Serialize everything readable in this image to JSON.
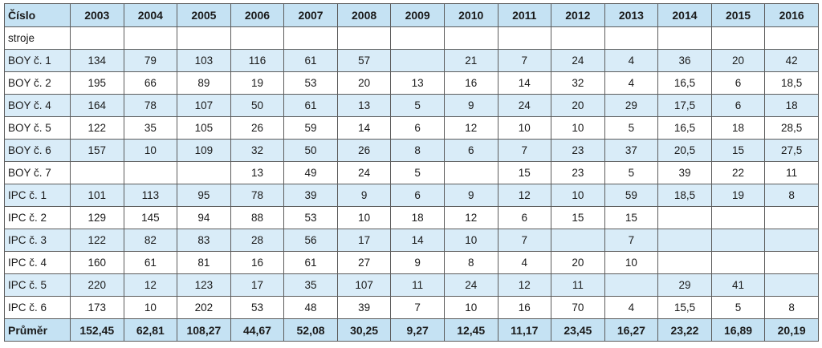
{
  "table": {
    "header": [
      "Číslo",
      "2003",
      "2004",
      "2005",
      "2006",
      "2007",
      "2008",
      "2009",
      "2010",
      "2011",
      "2012",
      "2013",
      "2014",
      "2015",
      "2016"
    ],
    "rows": [
      [
        "stroje",
        "",
        "",
        "",
        "",
        "",
        "",
        "",
        "",
        "",
        "",
        "",
        "",
        "",
        ""
      ],
      [
        "BOY č. 1",
        "134",
        "79",
        "103",
        "116",
        "61",
        "57",
        "",
        "21",
        "7",
        "24",
        "4",
        "36",
        "20",
        "42"
      ],
      [
        "BOY č. 2",
        "195",
        "66",
        "89",
        "19",
        "53",
        "20",
        "13",
        "16",
        "14",
        "32",
        "4",
        "16,5",
        "6",
        "18,5"
      ],
      [
        "BOY č. 4",
        "164",
        "78",
        "107",
        "50",
        "61",
        "13",
        "5",
        "9",
        "24",
        "20",
        "29",
        "17,5",
        "6",
        "18"
      ],
      [
        "BOY č. 5",
        "122",
        "35",
        "105",
        "26",
        "59",
        "14",
        "6",
        "12",
        "10",
        "10",
        "5",
        "16,5",
        "18",
        "28,5"
      ],
      [
        "BOY č. 6",
        "157",
        "10",
        "109",
        "32",
        "50",
        "26",
        "8",
        "6",
        "7",
        "23",
        "37",
        "20,5",
        "15",
        "27,5"
      ],
      [
        "BOY č. 7",
        "",
        "",
        "",
        "13",
        "49",
        "24",
        "5",
        "",
        "15",
        "23",
        "5",
        "39",
        "22",
        "11"
      ],
      [
        "IPC č. 1",
        "101",
        "113",
        "95",
        "78",
        "39",
        "9",
        "6",
        "9",
        "12",
        "10",
        "59",
        "18,5",
        "19",
        "8"
      ],
      [
        "IPC č. 2",
        "129",
        "145",
        "94",
        "88",
        "53",
        "10",
        "18",
        "12",
        "6",
        "15",
        "15",
        "",
        "",
        ""
      ],
      [
        "IPC č. 3",
        "122",
        "82",
        "83",
        "28",
        "56",
        "17",
        "14",
        "10",
        "7",
        "",
        "7",
        "",
        "",
        ""
      ],
      [
        "IPC č. 4",
        "160",
        "61",
        "81",
        "16",
        "61",
        "27",
        "9",
        "8",
        "4",
        "20",
        "10",
        "",
        "",
        ""
      ],
      [
        "IPC č. 5",
        "220",
        "12",
        "123",
        "17",
        "35",
        "107",
        "11",
        "24",
        "12",
        "11",
        "",
        "29",
        "41",
        ""
      ],
      [
        "IPC č. 6",
        "173",
        "10",
        "202",
        "53",
        "48",
        "39",
        "7",
        "10",
        "16",
        "70",
        "4",
        "15,5",
        "5",
        "8"
      ]
    ],
    "total": [
      "Průměr",
      "152,45",
      "62,81",
      "108,27",
      "44,67",
      "52,08",
      "30,25",
      "9,27",
      "12,45",
      "11,17",
      "23,45",
      "16,27",
      "23,22",
      "16,89",
      "20,19"
    ]
  },
  "colors": {
    "header_bg": "#c5e2f3",
    "shaded_row_bg": "#d9ecf8",
    "plain_row_bg": "#ffffff",
    "border": "#5c5c5c"
  }
}
